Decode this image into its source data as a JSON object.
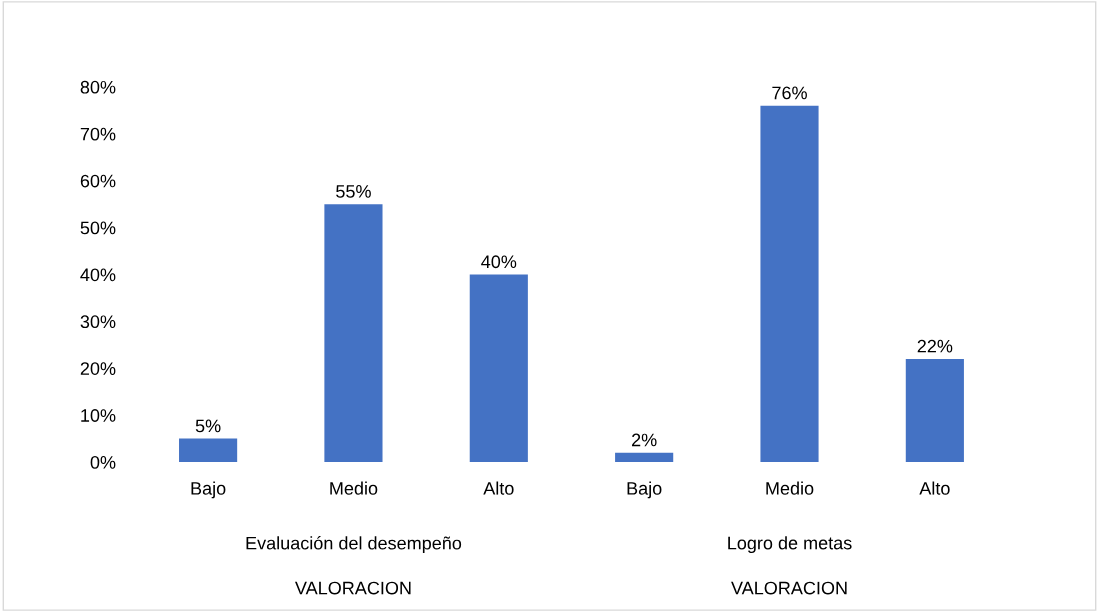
{
  "chart_data": {
    "type": "bar",
    "categories": [
      "Bajo",
      "Medio",
      "Alto",
      "Bajo",
      "Medio",
      "Alto"
    ],
    "values": [
      5,
      55,
      40,
      2,
      76,
      22
    ],
    "color": "#4472c4",
    "data_labels": true,
    "value_labels": [
      "5%",
      "55%",
      "40%",
      "2%",
      "76%",
      "22%"
    ],
    "ylim": [
      0,
      80
    ],
    "yticks": [
      {
        "value": 0,
        "label": "0%"
      },
      {
        "value": 10,
        "label": "10%"
      },
      {
        "value": 20,
        "label": "20%"
      },
      {
        "value": 30,
        "label": "30%"
      },
      {
        "value": 40,
        "label": "40%"
      },
      {
        "value": 50,
        "label": "50%"
      },
      {
        "value": 60,
        "label": "60%"
      },
      {
        "value": 70,
        "label": "70%"
      },
      {
        "value": 80,
        "label": "80%"
      }
    ],
    "grid": false,
    "legend": false,
    "annotations": [
      "Evaluación del desempeño",
      "Logro de metas",
      "VALORACION",
      "VALORACION"
    ]
  }
}
